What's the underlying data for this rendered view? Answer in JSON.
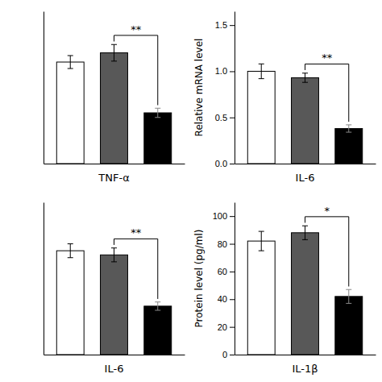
{
  "chart_data": [
    {
      "type": "bar",
      "xlabel": "TNF-α",
      "categories": [
        null,
        null,
        null
      ],
      "values": [
        1.1,
        1.2,
        0.55
      ],
      "errors": [
        0.07,
        0.09,
        0.05
      ],
      "colors": [
        "white",
        "#585858",
        "black"
      ],
      "ylim": [
        0,
        1.65
      ],
      "tick_labels": false,
      "annotations": [
        {
          "text": "**",
          "bars": [
            1,
            2
          ]
        }
      ]
    },
    {
      "type": "bar",
      "xlabel": "IL-6",
      "ylabel": "Relative mRNA level",
      "categories": [
        null,
        null,
        null
      ],
      "values": [
        1.0,
        0.93,
        0.38
      ],
      "errors": [
        0.08,
        0.05,
        0.04
      ],
      "colors": [
        "white",
        "#585858",
        "black"
      ],
      "ylim": [
        0,
        1.65
      ],
      "yticks": [
        {
          "value": 0.0,
          "label": "0.0"
        },
        0.5,
        {
          "value": 1.0,
          "label": "1.0"
        },
        1.5
      ],
      "tick_labels": "y",
      "annotations": [
        {
          "text": "**",
          "bars": [
            1,
            2
          ]
        }
      ]
    },
    {
      "type": "bar",
      "xlabel": "IL-6",
      "categories": [
        null,
        null,
        null
      ],
      "values": [
        75,
        72,
        35
      ],
      "errors": [
        5,
        5,
        3
      ],
      "colors": [
        "white",
        "#585858",
        "black"
      ],
      "ylim": [
        0,
        110
      ],
      "tick_labels": false,
      "annotations": [
        {
          "text": "**",
          "bars": [
            1,
            2
          ]
        }
      ]
    },
    {
      "type": "bar",
      "xlabel": "IL-1β",
      "ylabel": "Protein level (pg/ml)",
      "categories": [
        null,
        null,
        null
      ],
      "values": [
        82,
        88,
        42
      ],
      "errors": [
        7,
        5,
        5
      ],
      "colors": [
        "white",
        "#585858",
        "black"
      ],
      "ylim": [
        0,
        110
      ],
      "yticks": [
        0,
        20,
        40,
        60,
        80,
        100
      ],
      "tick_labels": "y",
      "annotations": [
        {
          "text": "*",
          "bars": [
            1,
            2
          ]
        }
      ]
    }
  ]
}
